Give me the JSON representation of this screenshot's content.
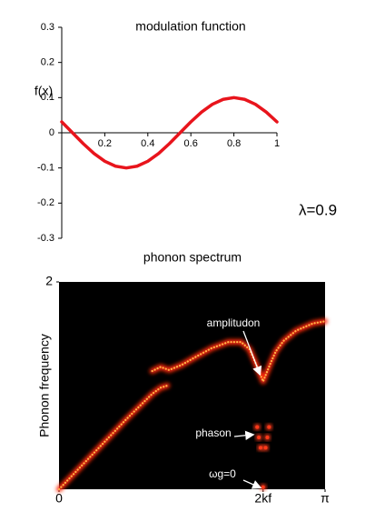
{
  "chart_data": [
    {
      "type": "line",
      "title": "modulation function",
      "ylabel": "f(x)",
      "annotation": "λ=0.9",
      "x": [
        0,
        0.05,
        0.1,
        0.15,
        0.2,
        0.25,
        0.3,
        0.35,
        0.4,
        0.45,
        0.5,
        0.55,
        0.6,
        0.65,
        0.7,
        0.75,
        0.8,
        0.85,
        0.9,
        0.95,
        1.0
      ],
      "series": [
        {
          "color": "#e8141c",
          "values": [
            0.031,
            0,
            -0.031,
            -0.059,
            -0.081,
            -0.095,
            -0.1,
            -0.095,
            -0.081,
            -0.059,
            -0.031,
            0,
            0.031,
            0.059,
            0.081,
            0.095,
            0.1,
            0.095,
            0.081,
            0.059,
            0.031
          ]
        }
      ],
      "xlim": [
        0,
        1
      ],
      "ylim": [
        -0.3,
        0.3
      ],
      "xticks": [
        0.2,
        0.4,
        0.6,
        0.8,
        1
      ],
      "yticks": [
        -0.3,
        -0.2,
        -0.1,
        0,
        0.1,
        0.2,
        0.3
      ]
    },
    {
      "type": "line",
      "title": "phonon spectrum",
      "ylabel": "Phonon frequency",
      "background": "#000000",
      "series": [
        {
          "color": "#ffb347",
          "x": [
            0,
            0.2,
            0.4,
            0.6,
            0.8,
            1.0,
            1.1,
            1.2,
            1.28
          ],
          "values": [
            0,
            0.17,
            0.34,
            0.51,
            0.68,
            0.84,
            0.92,
            0.98,
            1.0
          ]
        },
        {
          "color": "#ffb347",
          "x": [
            1.1,
            1.2,
            1.3,
            1.45,
            1.6,
            1.8,
            2.0,
            2.15,
            2.25,
            2.32,
            2.38,
            2.41,
            2.44,
            2.5,
            2.56,
            2.65,
            2.8,
            3.0,
            3.14
          ],
          "values": [
            1.14,
            1.18,
            1.15,
            1.2,
            1.27,
            1.36,
            1.42,
            1.42,
            1.35,
            1.22,
            1.1,
            1.04,
            1.1,
            1.22,
            1.33,
            1.43,
            1.53,
            1.6,
            1.62
          ]
        },
        {
          "color": "#ff3a1a",
          "marker": "dot",
          "x": [
            2.34,
            2.48,
            2.36,
            2.46,
            2.38,
            2.44,
            2.41
          ],
          "values": [
            0.6,
            0.6,
            0.5,
            0.5,
            0.4,
            0.4,
            0.02
          ]
        }
      ],
      "xlim": [
        0,
        3.14159
      ],
      "ylim": [
        0,
        2
      ],
      "xticks": [
        0,
        {
          "value": 2.41,
          "label": "2kf"
        },
        {
          "value": 3.14159,
          "label": "π"
        }
      ],
      "yticks": [
        2
      ],
      "annotations": [
        "amplitudon",
        "phason",
        "ωg=0"
      ]
    }
  ]
}
